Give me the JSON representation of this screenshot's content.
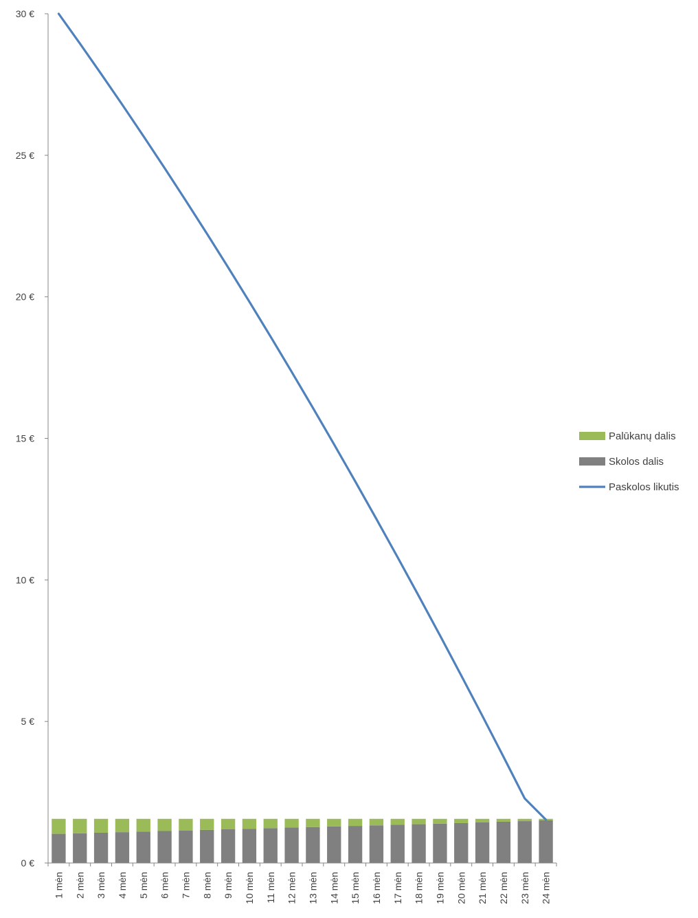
{
  "chart_data": {
    "type": "bar",
    "stacked": true,
    "categories": [
      "1 mėn",
      "2 mėn",
      "3 mėn",
      "4 mėn",
      "5 mėn",
      "6 mėn",
      "7 mėn",
      "8 mėn",
      "9 mėn",
      "10 mėn",
      "11 mėn",
      "12 mėn",
      "13 mėn",
      "14 mėn",
      "15 mėn",
      "16 mėn",
      "17 mėn",
      "18 mėn",
      "19 mėn",
      "20 mėn",
      "21 mėn",
      "22 mėn",
      "23 mėn",
      "24 mėn"
    ],
    "series": [
      {
        "name": "Skolos dalis",
        "kind": "bar",
        "color": "#808080",
        "values": [
          1.03,
          1.05,
          1.07,
          1.09,
          1.11,
          1.13,
          1.15,
          1.17,
          1.19,
          1.21,
          1.23,
          1.25,
          1.27,
          1.29,
          1.31,
          1.33,
          1.35,
          1.37,
          1.39,
          1.41,
          1.44,
          1.46,
          1.48,
          1.51
        ]
      },
      {
        "name": "Palūkanų dalis",
        "kind": "bar",
        "color": "#9BBB59",
        "values": [
          0.53,
          0.51,
          0.49,
          0.47,
          0.45,
          0.43,
          0.41,
          0.39,
          0.37,
          0.35,
          0.33,
          0.31,
          0.29,
          0.27,
          0.25,
          0.23,
          0.21,
          0.19,
          0.17,
          0.15,
          0.12,
          0.1,
          0.08,
          0.05
        ]
      },
      {
        "name": "Paskolos likutis",
        "kind": "line",
        "color": "#4F81BD",
        "values": [
          30.0,
          28.95,
          27.88,
          26.79,
          25.68,
          24.55,
          23.4,
          22.23,
          21.04,
          19.83,
          18.6,
          17.35,
          16.08,
          14.79,
          13.48,
          12.15,
          10.8,
          9.43,
          8.04,
          6.63,
          5.2,
          3.75,
          2.28,
          1.53
        ]
      }
    ],
    "ylim": [
      0,
      30
    ],
    "yticks": [
      0,
      5,
      10,
      15,
      20,
      25,
      30
    ],
    "ytick_labels": [
      "0 €",
      "5 €",
      "10 €",
      "15 €",
      "20 €",
      "25 €",
      "30 €"
    ],
    "legend": {
      "position": "right",
      "entries": [
        {
          "label": "Palūkanų dalis",
          "color": "#9BBB59",
          "kind": "bar"
        },
        {
          "label": "Skolos dalis",
          "color": "#808080",
          "kind": "bar"
        },
        {
          "label": "Paskolos likutis",
          "color": "#4F81BD",
          "kind": "line"
        }
      ]
    },
    "grid": false,
    "title": "",
    "xlabel": "",
    "ylabel": ""
  }
}
